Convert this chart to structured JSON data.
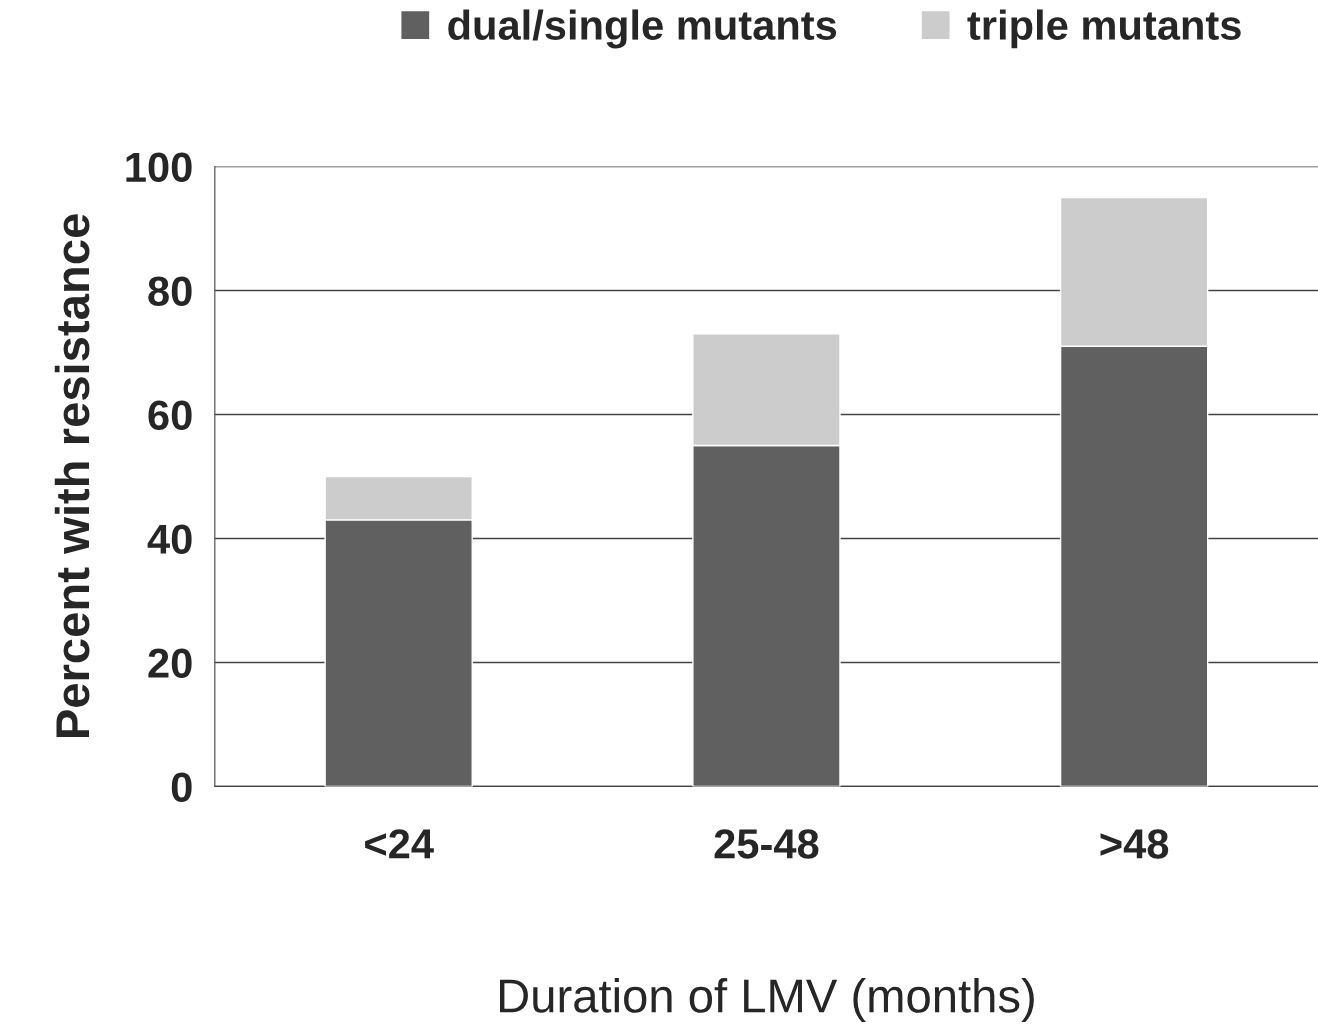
{
  "chart_data": {
    "type": "bar",
    "stacked": true,
    "xlabel": "Duration of LMV (months)",
    "ylabel": "Percent with resistance",
    "categories": [
      "<24",
      "25-48",
      ">48"
    ],
    "series": [
      {
        "name": "dual/single mutants",
        "color": "#606060",
        "values": [
          43,
          55,
          71
        ]
      },
      {
        "name": "triple mutants",
        "color": "#cccccc",
        "values": [
          7,
          18,
          24
        ]
      }
    ],
    "ylim": [
      0,
      100
    ],
    "yticks": [
      0,
      20,
      40,
      60,
      80,
      100
    ],
    "grid": "y",
    "legend": "top"
  }
}
